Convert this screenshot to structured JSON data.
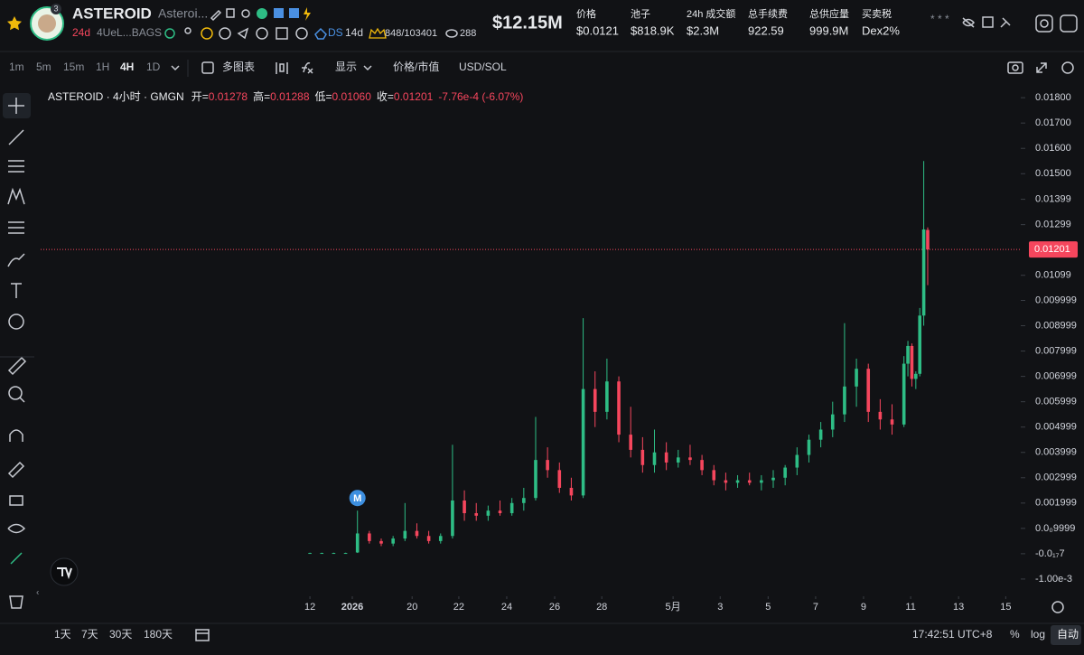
{
  "header": {
    "name": "ASTEROID",
    "short_name": "Asteroi...",
    "badge": "3",
    "age": "24d",
    "address": "4UeL...BAGS",
    "ds": "DS",
    "ds_age": "14d",
    "holders": "848/103401",
    "views": "288",
    "market_cap": "$12.15M",
    "stats": [
      {
        "label": "价格",
        "value": "$0.0121"
      },
      {
        "label": "池子",
        "value": "$818.9K"
      },
      {
        "label": "24h 成交额",
        "value": "$2.3M"
      },
      {
        "label": "总手续费",
        "value": "922.59"
      },
      {
        "label": "总供应量",
        "value": "999.9M"
      },
      {
        "label": "买卖税",
        "value": "Dex2%"
      }
    ]
  },
  "toolbar": {
    "intervals": [
      "1m",
      "5m",
      "15m",
      "1H",
      "4H",
      "1D"
    ],
    "active": "4H",
    "multi_chart": "多图表",
    "display": "显示",
    "price_mode": "价格/市值",
    "currency": "USD/SOL"
  },
  "legend": {
    "symbol": "ASTEROID · 4小时 · GMGN",
    "items": [
      {
        "label": "开=",
        "value": "0.01278"
      },
      {
        "label": "高=",
        "value": "0.01288"
      },
      {
        "label": "低=",
        "value": "0.01060"
      },
      {
        "label": "收=",
        "value": "0.01201"
      }
    ],
    "change": "-7.76e-4 (-6.07%)"
  },
  "footer": {
    "ranges": [
      "1天",
      "7天",
      "30天",
      "180天"
    ],
    "time": "17:42:51 UTC+8",
    "percent": "%",
    "log": "log",
    "auto": "自动"
  },
  "chart_data": {
    "type": "candlestick",
    "up_color": "#2ebd85",
    "down_color": "#f6465d",
    "marker_label": "M",
    "last_price": 0.01201,
    "xlim": [
      -68,
      179.5
    ],
    "ylim": [
      -0.00168,
      0.01829
    ],
    "xticks": [
      {
        "value": 0,
        "label": "12"
      },
      {
        "value": 10.7,
        "label": "2026"
      },
      {
        "value": 25.8,
        "label": "20"
      },
      {
        "value": 37.6,
        "label": "22"
      },
      {
        "value": 49.7,
        "label": "24"
      },
      {
        "value": 61.8,
        "label": "26"
      },
      {
        "value": 73.7,
        "label": "28"
      },
      {
        "value": 91.7,
        "label": "5月"
      },
      {
        "value": 103.6,
        "label": "3"
      },
      {
        "value": 115.7,
        "label": "5"
      },
      {
        "value": 127.7,
        "label": "7"
      },
      {
        "value": 139.8,
        "label": "9"
      },
      {
        "value": 151.7,
        "label": "11"
      },
      {
        "value": 163.8,
        "label": "13"
      },
      {
        "value": 175.7,
        "label": "15"
      }
    ],
    "yticks": [
      {
        "value": 0.018,
        "label": "0.01800"
      },
      {
        "value": 0.017,
        "label": "0.01700"
      },
      {
        "value": 0.016,
        "label": "0.01600"
      },
      {
        "value": 0.015,
        "label": "0.01500"
      },
      {
        "value": 0.01399,
        "label": "0.01399"
      },
      {
        "value": 0.01299,
        "label": "0.01299"
      },
      {
        "value": 0.01099,
        "label": "0.01099"
      },
      {
        "value": 0.009999,
        "label": "0.009999"
      },
      {
        "value": 0.008999,
        "label": "0.008999"
      },
      {
        "value": 0.007999,
        "label": "0.007999"
      },
      {
        "value": 0.006999,
        "label": "0.006999"
      },
      {
        "value": 0.005999,
        "label": "0.005999"
      },
      {
        "value": 0.004999,
        "label": "0.004999"
      },
      {
        "value": 0.003999,
        "label": "0.003999"
      },
      {
        "value": 0.002999,
        "label": "0.002999"
      },
      {
        "value": 0.001999,
        "label": "0.001999"
      },
      {
        "value": 0.0009999,
        "label": "0.0₀9999"
      },
      {
        "value": -7e-18,
        "label": "-0.0₁₇7"
      },
      {
        "value": -0.001,
        "label": "-1.00e-3"
      }
    ],
    "x": [
      0,
      3,
      6,
      9,
      12,
      15,
      18,
      21,
      24,
      27,
      30,
      33,
      36,
      39,
      42,
      45,
      48,
      51,
      54,
      57,
      60,
      63,
      66,
      69,
      72,
      75,
      78,
      81,
      84,
      87,
      90,
      93,
      96,
      99,
      102,
      105,
      108,
      111,
      114,
      117,
      120,
      123,
      126,
      129,
      132,
      135,
      138,
      141,
      144,
      147,
      150,
      151,
      152,
      153,
      154,
      155,
      156
    ],
    "open": [
      3e-05,
      3e-05,
      3e-05,
      3e-05,
      5e-05,
      0.0008,
      0.0005,
      0.0004,
      0.0006,
      0.0009,
      0.0007,
      0.0005,
      0.0007,
      0.0021,
      0.0016,
      0.0015,
      0.0017,
      0.0016,
      0.002,
      0.0022,
      0.0037,
      0.0033,
      0.0026,
      0.0023,
      0.0065,
      0.0056,
      0.0068,
      0.0047,
      0.0041,
      0.0035,
      0.004,
      0.0036,
      0.0038,
      0.0037,
      0.0033,
      0.0029,
      0.0028,
      0.0029,
      0.0028,
      0.0029,
      0.003,
      0.0034,
      0.0039,
      0.0045,
      0.0049,
      0.0055,
      0.0066,
      0.0073,
      0.0056,
      0.0053,
      0.0051,
      0.0075,
      0.0082,
      0.0069,
      0.0071,
      0.0094,
      0.01278
    ],
    "high": [
      4e-05,
      4e-05,
      4e-05,
      4e-05,
      0.0017,
      0.0009,
      0.0006,
      0.0007,
      0.002,
      0.0012,
      0.0009,
      0.0008,
      0.0043,
      0.0025,
      0.002,
      0.0019,
      0.0021,
      0.0022,
      0.0026,
      0.0054,
      0.0042,
      0.0036,
      0.003,
      0.0093,
      0.0072,
      0.0077,
      0.007,
      0.0058,
      0.0046,
      0.0049,
      0.0044,
      0.0041,
      0.0043,
      0.0039,
      0.0035,
      0.0032,
      0.0031,
      0.0032,
      0.0031,
      0.0033,
      0.0035,
      0.0042,
      0.0047,
      0.0052,
      0.006,
      0.0091,
      0.0077,
      0.0075,
      0.0061,
      0.0059,
      0.0078,
      0.0084,
      0.0083,
      0.0072,
      0.0097,
      0.0155,
      0.01288
    ],
    "low": [
      2e-05,
      2e-05,
      2e-05,
      2e-05,
      3e-05,
      0.0004,
      0.0003,
      0.0003,
      0.0005,
      0.0006,
      0.0004,
      0.0004,
      0.0006,
      0.0013,
      0.0013,
      0.0013,
      0.0015,
      0.0015,
      0.0017,
      0.0021,
      0.003,
      0.0024,
      0.0021,
      0.0022,
      0.005,
      0.0053,
      0.0044,
      0.0038,
      0.0032,
      0.0032,
      0.0033,
      0.0034,
      0.0035,
      0.0031,
      0.0027,
      0.0025,
      0.0026,
      0.0027,
      0.0025,
      0.0026,
      0.0027,
      0.0031,
      0.0036,
      0.0042,
      0.0046,
      0.0052,
      0.0058,
      0.0052,
      0.0049,
      0.0047,
      0.005,
      0.007,
      0.0066,
      0.0065,
      0.007,
      0.009,
      0.0106
    ],
    "close": [
      3e-05,
      3e-05,
      3e-05,
      3e-05,
      0.0008,
      0.0005,
      0.0004,
      0.0006,
      0.0009,
      0.0007,
      0.0005,
      0.0007,
      0.0021,
      0.0016,
      0.0015,
      0.0017,
      0.0016,
      0.002,
      0.0022,
      0.0037,
      0.0033,
      0.0026,
      0.0023,
      0.0065,
      0.0056,
      0.0068,
      0.0047,
      0.0041,
      0.0035,
      0.004,
      0.0036,
      0.0038,
      0.0037,
      0.0033,
      0.0029,
      0.0028,
      0.0029,
      0.0028,
      0.0029,
      0.003,
      0.0034,
      0.0039,
      0.0045,
      0.0049,
      0.0055,
      0.0066,
      0.0073,
      0.0056,
      0.0053,
      0.0051,
      0.0075,
      0.0082,
      0.0069,
      0.0071,
      0.0094,
      0.0128,
      0.01201
    ]
  }
}
